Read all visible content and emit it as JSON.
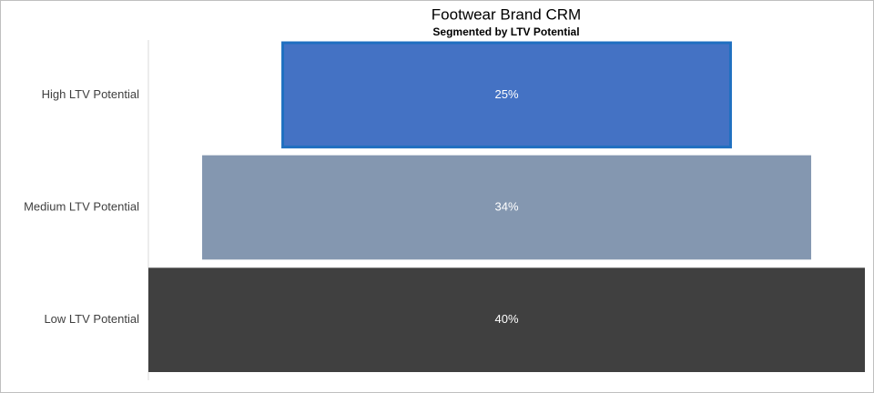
{
  "chart_data": {
    "type": "funnel",
    "title": "Footwear Brand CRM",
    "subtitle": "Segmented by LTV Potential",
    "categories": [
      "High LTV Potential",
      "Medium LTV Potential",
      "Low LTV Potential"
    ],
    "values": [
      25,
      34,
      40
    ],
    "value_labels": [
      "25%",
      "34%",
      "40%"
    ],
    "colors": [
      "#4472c4",
      "#8497b0",
      "#404040"
    ]
  }
}
